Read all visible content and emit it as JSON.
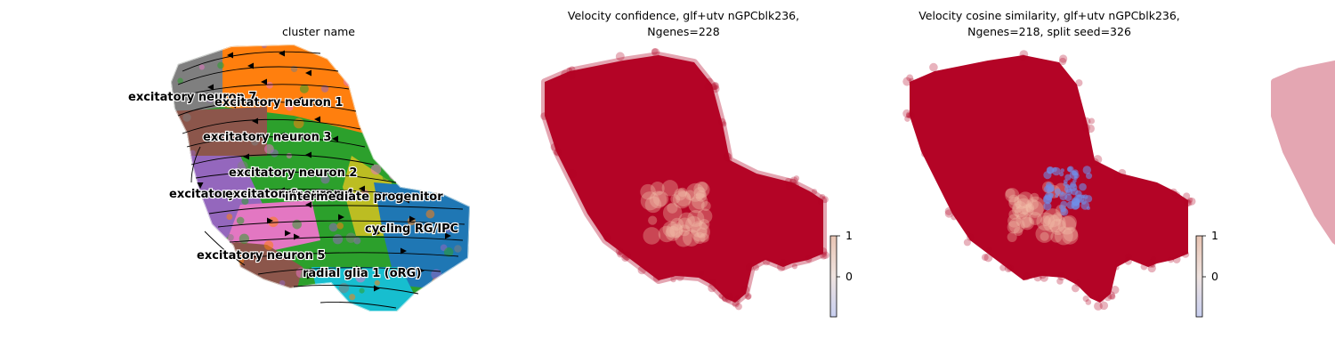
{
  "figure": {
    "panels": [
      {
        "title_lines": [
          "cluster name"
        ]
      },
      {
        "title_lines": [
          "Velocity confidence, glf+utv nGPCblk236,",
          "Ngenes=228"
        ]
      },
      {
        "title_lines": [
          "Velocity cosine similarity, glf+utv nGPCblk236,",
          "Ngenes=218, split seed=326"
        ]
      }
    ]
  },
  "chart_data": [
    {
      "type": "scatter",
      "title": "cluster name",
      "xlabel": "",
      "ylabel": "",
      "grid": false,
      "legend": "on data",
      "annotations": [
        {
          "text": "excitatory neuron 7",
          "color": "#7f7f7f"
        },
        {
          "text": "excitatory neuron 1",
          "color": "#ff7f0e"
        },
        {
          "text": "excitatory neuron 3",
          "color": "#8c564b"
        },
        {
          "text": "excitatory neuron 2",
          "color": "#2ca02c"
        },
        {
          "text": "excitatory neuron 6",
          "color": "#9467bd"
        },
        {
          "text": "excitatory neuron 4",
          "color": "#e377c2"
        },
        {
          "text": "intermediate progenitor",
          "color": "#bcbd22"
        },
        {
          "text": "cycling RG/IPC",
          "color": "#1f77b4"
        },
        {
          "text": "excitatory neuron 5",
          "color": "#8c564b"
        },
        {
          "text": "radial glia 1 (oRG)",
          "color": "#17becf"
        }
      ],
      "series_overlay": "velocity stream arrows"
    },
    {
      "type": "scatter",
      "title": "Velocity confidence, glf+utv nGPCblk236, Ngenes=228",
      "colorbar": {
        "ticks": [
          "1",
          "0"
        ],
        "cmap": "coolwarm",
        "range_top": 1,
        "range_bottom": -0.5
      },
      "dominant_value": 1,
      "low_region": "center",
      "colors": {
        "high": "#b40426",
        "mid": "#f4c4ad",
        "low": "#6f8ee8"
      }
    },
    {
      "type": "scatter",
      "title": "Velocity cosine similarity, glf+utv nGPCblk236, Ngenes=218, split seed=326",
      "colorbar": {
        "ticks": [
          "1",
          "0"
        ],
        "cmap": "coolwarm",
        "range_top": 1,
        "range_bottom": -0.5
      },
      "dominant_value": 1,
      "low_region": "center",
      "colors": {
        "high": "#b40426",
        "mid": "#f4c4ad",
        "low": "#6f8ee8"
      }
    }
  ]
}
